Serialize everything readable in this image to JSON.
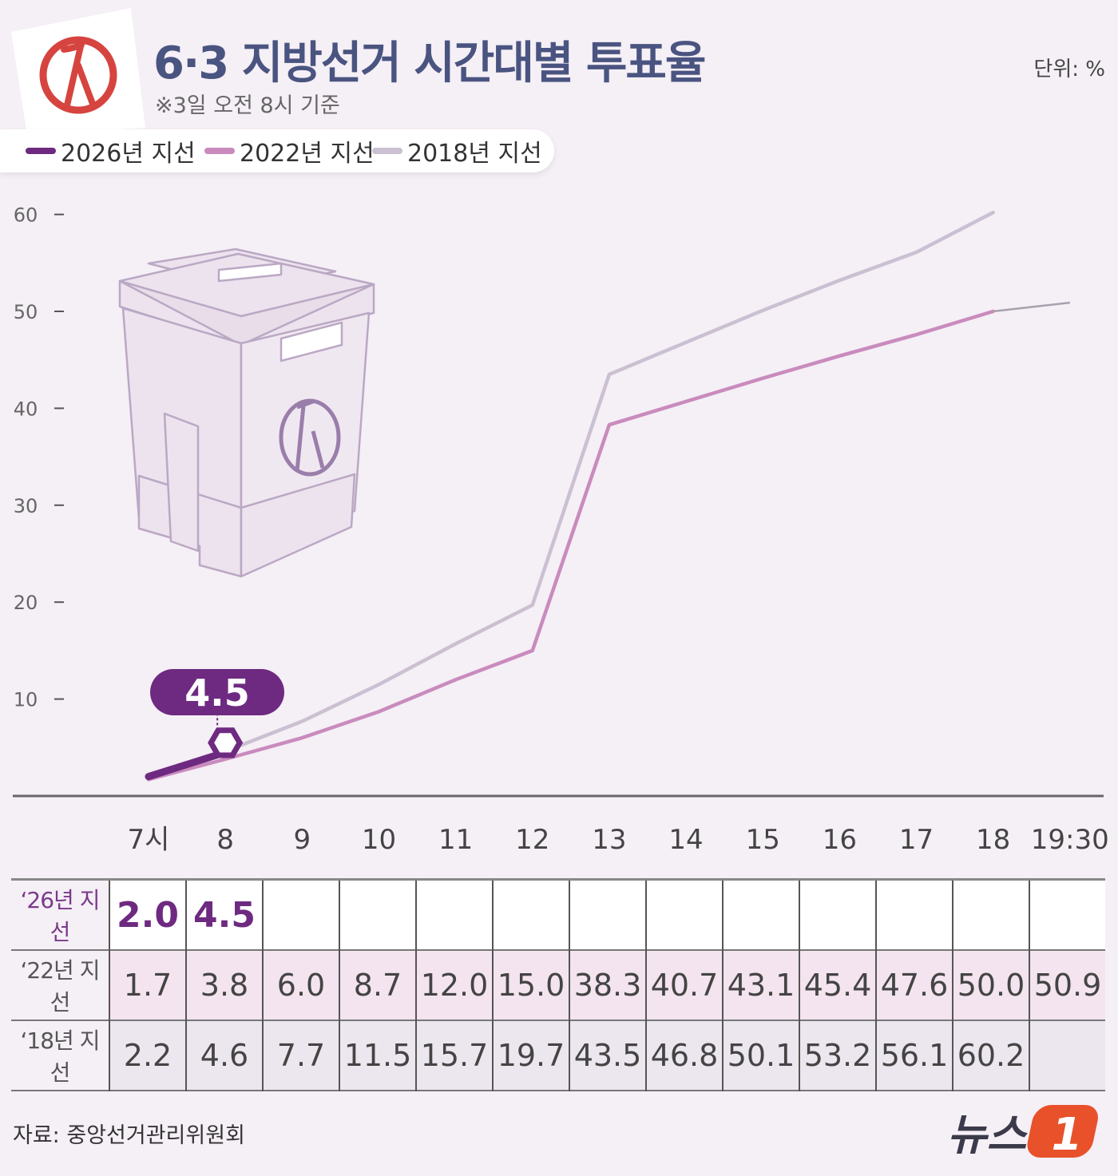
{
  "header": {
    "title": "6·3 지방선거 시간대별 투표율",
    "subtitle": "※3일 오전 8시 기준",
    "unit": "단위: %"
  },
  "legend": [
    {
      "label": "2026년 지선",
      "color": "#6e2a80"
    },
    {
      "label": "2022년 지선",
      "color": "#c98bbd"
    },
    {
      "label": "2018년 지선",
      "color": "#cbc0d2"
    }
  ],
  "chart_data": {
    "type": "line",
    "x": [
      "7시",
      "8",
      "9",
      "10",
      "11",
      "12",
      "13",
      "14",
      "15",
      "16",
      "17",
      "18",
      "19:30"
    ],
    "ylim": [
      0,
      60
    ],
    "yticks": [
      10,
      20,
      30,
      40,
      50,
      60
    ],
    "grid": false,
    "legend_position": "top-left",
    "callout": "4.5",
    "series": [
      {
        "name": "2026년 지선",
        "color": "#6e2a80",
        "values": [
          2.0,
          4.5,
          null,
          null,
          null,
          null,
          null,
          null,
          null,
          null,
          null,
          null,
          null
        ]
      },
      {
        "name": "2022년 지선",
        "color": "#c98bbd",
        "values": [
          1.7,
          3.8,
          6.0,
          8.7,
          12.0,
          15.0,
          38.3,
          40.7,
          43.1,
          45.4,
          47.6,
          50.0,
          50.9
        ]
      },
      {
        "name": "2018년 지선",
        "color": "#cbc0d2",
        "values": [
          2.2,
          4.6,
          7.7,
          11.5,
          15.7,
          19.7,
          43.5,
          46.8,
          50.1,
          53.2,
          56.1,
          60.2,
          null
        ]
      }
    ]
  },
  "table": {
    "rows": [
      {
        "label": "‘26년 지선",
        "values": [
          "2.0",
          "4.5",
          "",
          "",
          "",
          "",
          "",
          "",
          "",
          "",
          "",
          "",
          ""
        ]
      },
      {
        "label": "‘22년 지선",
        "values": [
          "1.7",
          "3.8",
          "6.0",
          "8.7",
          "12.0",
          "15.0",
          "38.3",
          "40.7",
          "43.1",
          "45.4",
          "47.6",
          "50.0",
          "50.9"
        ]
      },
      {
        "label": "‘18년 지선",
        "values": [
          "2.2",
          "4.6",
          "7.7",
          "11.5",
          "15.7",
          "19.7",
          "43.5",
          "46.8",
          "50.1",
          "53.2",
          "56.1",
          "60.2",
          ""
        ]
      }
    ]
  },
  "footer": {
    "source": "자료: 중앙선거관리위원회",
    "logo_text": "뉴스",
    "logo_mark": "1"
  },
  "icons": [
    "vote-stamp-icon",
    "ballot-box-icon"
  ]
}
